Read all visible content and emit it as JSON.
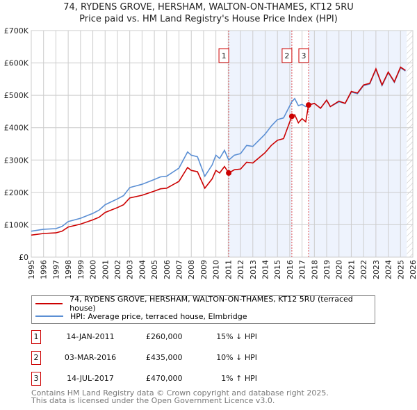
{
  "chart_data": {
    "type": "line",
    "title": "74, RYDENS GROVE, HERSHAM, WALTON-ON-THAMES, KT12 5RU",
    "subtitle": "Price paid vs. HM Land Registry's House Price Index (HPI)",
    "xlim": [
      1995,
      2026
    ],
    "ylim": [
      0,
      700000
    ],
    "x_ticks": [
      "1995",
      "1996",
      "1997",
      "1998",
      "1999",
      "2000",
      "2001",
      "2002",
      "2003",
      "2004",
      "2005",
      "2006",
      "2007",
      "2008",
      "2009",
      "2010",
      "2011",
      "2012",
      "2013",
      "2014",
      "2015",
      "2016",
      "2017",
      "2018",
      "2019",
      "2020",
      "2021",
      "2022",
      "2023",
      "2024",
      "2025",
      "2026"
    ],
    "y_ticks": [
      {
        "v": 0,
        "label": "£0"
      },
      {
        "v": 100000,
        "label": "£100K"
      },
      {
        "v": 200000,
        "label": "£200K"
      },
      {
        "v": 300000,
        "label": "£300K"
      },
      {
        "v": 400000,
        "label": "£400K"
      },
      {
        "v": 500000,
        "label": "£500K"
      },
      {
        "v": 600000,
        "label": "£600K"
      },
      {
        "v": 700000,
        "label": "£700K"
      }
    ],
    "grid": true,
    "x": [
      1995,
      1996,
      1997,
      1997.5,
      1998,
      1999,
      2000,
      2000.5,
      2001,
      2002,
      2002.5,
      2003,
      2004,
      2005,
      2005.5,
      2006,
      2007,
      2007.7,
      2008,
      2008.5,
      2009.1,
      2009.7,
      2010,
      2010.3,
      2010.7,
      2011.04,
      2011.5,
      2012,
      2012.5,
      2013,
      2014,
      2014.5,
      2015,
      2015.5,
      2016.17,
      2016.4,
      2016.7,
      2017,
      2017.3,
      2017.53,
      2018,
      2018.5,
      2019,
      2019.3,
      2020,
      2020.5,
      2021,
      2021.5,
      2022,
      2022.5,
      2023,
      2023.5,
      2024,
      2024.5,
      2025,
      2025.4
    ],
    "series": [
      {
        "name": "74, RYDENS GROVE, HERSHAM, WALTON-ON-THAMES, KT12 5RU (terraced house)",
        "color": "#cc0000",
        "values": [
          68000,
          73000,
          75000,
          80000,
          93000,
          102000,
          115000,
          123000,
          138000,
          153000,
          162000,
          183000,
          191000,
          204000,
          211000,
          213000,
          234000,
          277000,
          268000,
          264000,
          213000,
          242000,
          268000,
          260000,
          280000,
          260000,
          270000,
          272000,
          293000,
          291000,
          323000,
          345000,
          361000,
          366000,
          435000,
          440000,
          415000,
          428000,
          418000,
          470000,
          475000,
          460000,
          485000,
          465000,
          482000,
          475000,
          512000,
          507000,
          532000,
          537000,
          582000,
          532000,
          572000,
          542000,
          587000,
          577000
        ]
      },
      {
        "name": "HPI: Average price, terraced house, Elmbridge",
        "color": "#5b8fd4",
        "values": [
          80000,
          86000,
          88000,
          95000,
          110000,
          120000,
          135000,
          145000,
          162000,
          180000,
          190000,
          215000,
          225000,
          240000,
          248000,
          250000,
          275000,
          325000,
          315000,
          310000,
          250000,
          285000,
          315000,
          305000,
          330000,
          300000,
          315000,
          320000,
          345000,
          342000,
          380000,
          405000,
          425000,
          430000,
          480000,
          490000,
          468000,
          472000,
          465000,
          470000,
          475000,
          460000,
          485000,
          465000,
          480000,
          475000,
          510000,
          505000,
          530000,
          535000,
          580000,
          530000,
          570000,
          540000,
          585000,
          575000
        ]
      }
    ],
    "sales": [
      {
        "n": "1",
        "x": 2011.04,
        "price": 260000,
        "date": "14-JAN-2011",
        "price_label": "£260,000",
        "hpi_diff": "15% ↓ HPI"
      },
      {
        "n": "2",
        "x": 2016.17,
        "price": 435000,
        "date": "03-MAR-2016",
        "price_label": "£435,000",
        "hpi_diff": "10% ↓ HPI"
      },
      {
        "n": "3",
        "x": 2017.53,
        "price": 470000,
        "date": "14-JUL-2017",
        "price_label": "£470,000",
        "hpi_diff": "1% ↑ HPI"
      }
    ],
    "data_end": 2025.5,
    "legend_placement": "below"
  },
  "footer": {
    "line1": "Contains HM Land Registry data © Crown copyright and database right 2025.",
    "line2": "This data is licensed under the Open Government Licence v3.0."
  }
}
